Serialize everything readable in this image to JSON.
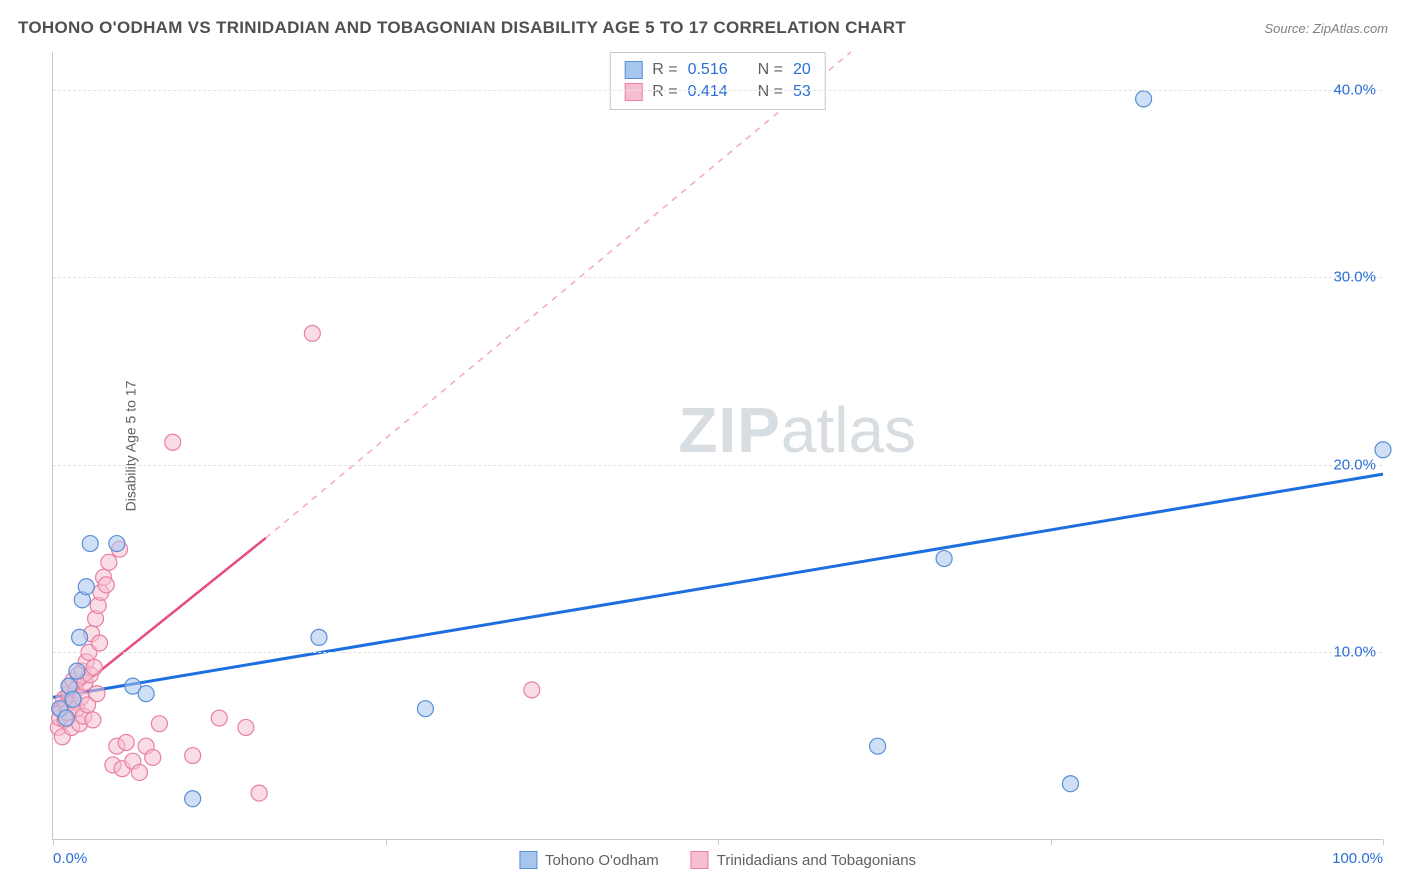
{
  "title": "TOHONO O'ODHAM VS TRINIDADIAN AND TOBAGONIAN DISABILITY AGE 5 TO 17 CORRELATION CHART",
  "source": "Source: ZipAtlas.com",
  "ylabel": "Disability Age 5 to 17",
  "watermark_bold": "ZIP",
  "watermark_rest": "atlas",
  "chart": {
    "type": "scatter",
    "xlim": [
      0,
      100
    ],
    "ylim": [
      0,
      42
    ],
    "xticks": [
      0,
      25,
      50,
      75,
      100
    ],
    "xtick_labels": {
      "0": "0.0%",
      "100": "100.0%"
    },
    "yticks": [
      10,
      20,
      30,
      40
    ],
    "ytick_labels": {
      "10": "10.0%",
      "20": "20.0%",
      "30": "30.0%",
      "40": "40.0%"
    },
    "ytick_color": "#2a6fd6",
    "xtick_color": "#2a6fd6",
    "grid_color": "#e3e3e3",
    "axis_color": "#c8c8c8",
    "background_color": "#ffffff",
    "marker_radius": 8,
    "marker_opacity": 0.55,
    "series": {
      "tohono": {
        "label": "Tohono O'odham",
        "color_fill": "#a7c6ee",
        "color_stroke": "#5a8fd6",
        "r_value": "0.516",
        "n_value": "20",
        "trend": {
          "x1": 0,
          "y1": 7.6,
          "x2": 100,
          "y2": 19.5,
          "color": "#1d6fe0",
          "width": 3,
          "dash": "none"
        },
        "points": [
          [
            0.5,
            7.0
          ],
          [
            1.0,
            6.5
          ],
          [
            1.2,
            8.2
          ],
          [
            1.5,
            7.5
          ],
          [
            1.8,
            9.0
          ],
          [
            2.0,
            10.8
          ],
          [
            2.2,
            12.8
          ],
          [
            2.5,
            13.5
          ],
          [
            2.8,
            15.8
          ],
          [
            4.8,
            15.8
          ],
          [
            6.0,
            8.2
          ],
          [
            7.0,
            7.8
          ],
          [
            10.5,
            2.2
          ],
          [
            20.0,
            10.8
          ],
          [
            28.0,
            7.0
          ],
          [
            62.0,
            5.0
          ],
          [
            67.0,
            15.0
          ],
          [
            76.5,
            3.0
          ],
          [
            82.0,
            39.5
          ],
          [
            100.0,
            20.8
          ]
        ]
      },
      "trinidad": {
        "label": "Trinidadians and Tobagonians",
        "color_fill": "#f6bfcf",
        "color_stroke": "#e97fa4",
        "r_value": "0.414",
        "n_value": "53",
        "trend_solid": {
          "x1": 0,
          "y1": 7.0,
          "x2": 16,
          "y2": 16.1,
          "color": "#e64b86",
          "width": 2.5
        },
        "trend_dash": {
          "x1": 16,
          "y1": 16.1,
          "x2": 60,
          "y2": 42.0,
          "color": "#f4a7c0",
          "width": 1.5
        },
        "points": [
          [
            0.4,
            6.0
          ],
          [
            0.5,
            6.5
          ],
          [
            0.6,
            7.0
          ],
          [
            0.7,
            5.5
          ],
          [
            0.8,
            7.5
          ],
          [
            0.9,
            6.4
          ],
          [
            1.0,
            7.2
          ],
          [
            1.1,
            6.8
          ],
          [
            1.2,
            7.8
          ],
          [
            1.3,
            8.2
          ],
          [
            1.4,
            6.0
          ],
          [
            1.5,
            8.5
          ],
          [
            1.6,
            7.4
          ],
          [
            1.7,
            8.0
          ],
          [
            1.8,
            7.0
          ],
          [
            1.9,
            8.8
          ],
          [
            2.0,
            6.2
          ],
          [
            2.1,
            7.6
          ],
          [
            2.2,
            9.0
          ],
          [
            2.3,
            6.6
          ],
          [
            2.4,
            8.4
          ],
          [
            2.5,
            9.5
          ],
          [
            2.6,
            7.2
          ],
          [
            2.7,
            10.0
          ],
          [
            2.8,
            8.8
          ],
          [
            2.9,
            11.0
          ],
          [
            3.0,
            6.4
          ],
          [
            3.1,
            9.2
          ],
          [
            3.2,
            11.8
          ],
          [
            3.3,
            7.8
          ],
          [
            3.4,
            12.5
          ],
          [
            3.5,
            10.5
          ],
          [
            3.6,
            13.2
          ],
          [
            3.8,
            14.0
          ],
          [
            4.0,
            13.6
          ],
          [
            4.2,
            14.8
          ],
          [
            4.5,
            4.0
          ],
          [
            4.8,
            5.0
          ],
          [
            5.0,
            15.5
          ],
          [
            5.2,
            3.8
          ],
          [
            5.5,
            5.2
          ],
          [
            6.0,
            4.2
          ],
          [
            6.5,
            3.6
          ],
          [
            7.0,
            5.0
          ],
          [
            7.5,
            4.4
          ],
          [
            8.0,
            6.2
          ],
          [
            9.0,
            21.2
          ],
          [
            10.5,
            4.5
          ],
          [
            12.5,
            6.5
          ],
          [
            14.5,
            6.0
          ],
          [
            15.5,
            2.5
          ],
          [
            19.5,
            27.0
          ],
          [
            36.0,
            8.0
          ]
        ]
      }
    }
  },
  "corr_legend": {
    "r_label": "R =",
    "n_label": "N ="
  }
}
